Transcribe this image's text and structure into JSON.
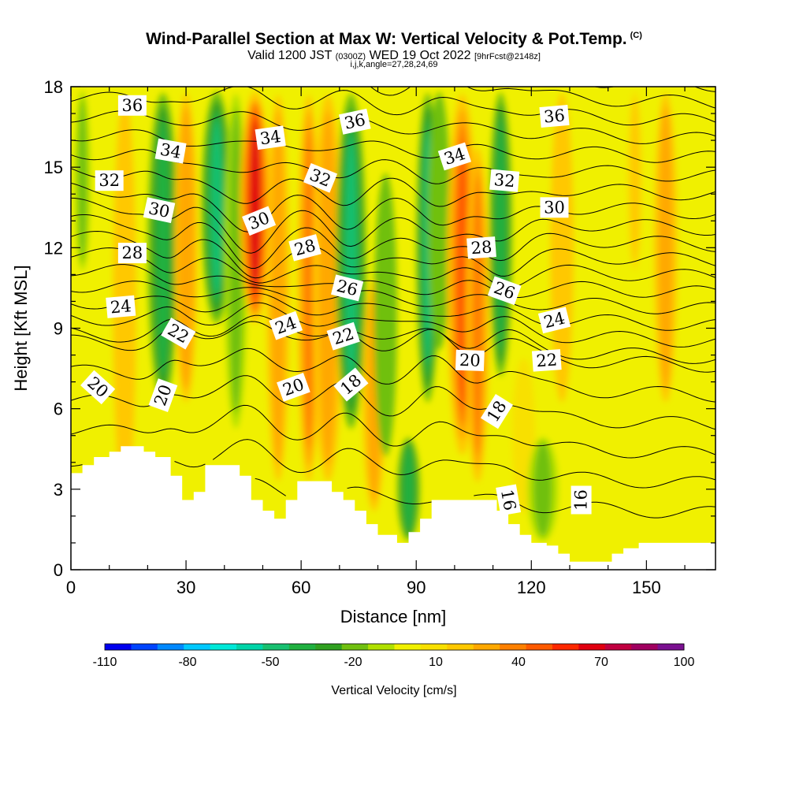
{
  "title": {
    "main": "Wind-Parallel Section at Max W: Vertical Velocity & Pot.Temp.",
    "copyright": "(C)",
    "valid_prefix": "Valid 1200 JST",
    "valid_utc": "(0300Z)",
    "valid_date": "WED 19 Oct 2022",
    "forecast": "[9hrFcst@2148z]",
    "indices": "i,j,k,angle=27,28,24,69"
  },
  "chart_data": {
    "type": "heatmap",
    "xlabel": "Distance [nm]",
    "ylabel": "Height [Kft MSL]",
    "xlim": [
      0,
      168
    ],
    "ylim": [
      0,
      18
    ],
    "x_ticks": [
      0,
      30,
      60,
      90,
      120,
      150
    ],
    "y_ticks": [
      0,
      3,
      6,
      9,
      12,
      15,
      18
    ],
    "colorbar": {
      "label": "Vertical Velocity [cm/s]",
      "tick_labels": [
        "-110",
        "-80",
        "-50",
        "-20",
        "10",
        "40",
        "70",
        "100"
      ],
      "tick_values": [
        -110,
        -80,
        -50,
        -20,
        10,
        40,
        70,
        100
      ],
      "colors": [
        "#0000ee",
        "#0044ff",
        "#0088ff",
        "#00c8ff",
        "#00e8d8",
        "#00d4a8",
        "#18c070",
        "#20b040",
        "#30a020",
        "#70c010",
        "#b0e000",
        "#f0f000",
        "#f8e000",
        "#ffc800",
        "#ffa800",
        "#ff8000",
        "#ff5a00",
        "#ff2800",
        "#e00010",
        "#c00040",
        "#a00060",
        "#7a1090"
      ]
    },
    "background_color": "#f0f000",
    "w_plumes": [
      {
        "x": 3,
        "w": 2,
        "y0": 11,
        "y1": 18,
        "v": -18
      },
      {
        "x": 14,
        "w": 3,
        "y0": 2,
        "y1": 18,
        "v": 22
      },
      {
        "x": 24,
        "w": 4,
        "y0": 6,
        "y1": 18,
        "v": -40
      },
      {
        "x": 30,
        "w": 3,
        "y0": 6,
        "y1": 18,
        "v": 32
      },
      {
        "x": 38,
        "w": 4,
        "y0": 9,
        "y1": 18,
        "v": -48
      },
      {
        "x": 43,
        "w": 3,
        "y0": 5,
        "y1": 18,
        "v": -20
      },
      {
        "x": 48,
        "w": 4,
        "y0": 9,
        "y1": 18,
        "v": 62
      },
      {
        "x": 54,
        "w": 3,
        "y0": 3,
        "y1": 18,
        "v": 25
      },
      {
        "x": 62,
        "w": 3,
        "y0": 3,
        "y1": 18,
        "v": 38
      },
      {
        "x": 67,
        "w": 4,
        "y0": 3,
        "y1": 18,
        "v": 25
      },
      {
        "x": 73,
        "w": 4,
        "y0": 5,
        "y1": 18,
        "v": -45
      },
      {
        "x": 79,
        "w": 3,
        "y0": 2,
        "y1": 11,
        "v": 28
      },
      {
        "x": 82,
        "w": 3,
        "y0": 4,
        "y1": 15,
        "v": -22
      },
      {
        "x": 88,
        "w": 3,
        "y0": 1,
        "y1": 5,
        "v": -38
      },
      {
        "x": 93,
        "w": 3,
        "y0": 6,
        "y1": 18,
        "v": -45
      },
      {
        "x": 96,
        "w": 3,
        "y0": 8,
        "y1": 18,
        "v": -22
      },
      {
        "x": 102,
        "w": 4,
        "y0": 4,
        "y1": 18,
        "v": 48
      },
      {
        "x": 106,
        "w": 3,
        "y0": 3,
        "y1": 16,
        "v": 35
      },
      {
        "x": 112,
        "w": 3,
        "y0": 7,
        "y1": 18,
        "v": -38
      },
      {
        "x": 118,
        "w": 3,
        "y0": 2,
        "y1": 8,
        "v": 10
      },
      {
        "x": 123,
        "w": 4,
        "y0": 1,
        "y1": 5,
        "v": -20
      },
      {
        "x": 128,
        "w": 3,
        "y0": 6,
        "y1": 18,
        "v": 22
      },
      {
        "x": 147,
        "w": 2,
        "y0": 11,
        "y1": 18,
        "v": 18
      },
      {
        "x": 155,
        "w": 3,
        "y0": 6,
        "y1": 18,
        "v": 24
      }
    ],
    "terrain": [
      [
        0,
        3.6
      ],
      [
        3,
        3.9
      ],
      [
        6,
        4.2
      ],
      [
        10,
        4.4
      ],
      [
        13,
        4.6
      ],
      [
        19,
        4.4
      ],
      [
        22,
        4.2
      ],
      [
        26,
        3.5
      ],
      [
        29,
        2.6
      ],
      [
        32,
        2.9
      ],
      [
        35,
        3.9
      ],
      [
        41,
        3.9
      ],
      [
        44,
        3.5
      ],
      [
        47,
        2.6
      ],
      [
        50,
        2.2
      ],
      [
        53,
        1.9
      ],
      [
        56,
        2.6
      ],
      [
        59,
        3.3
      ],
      [
        66,
        3.3
      ],
      [
        68,
        2.9
      ],
      [
        71,
        2.6
      ],
      [
        74,
        2.2
      ],
      [
        77,
        1.7
      ],
      [
        80,
        1.3
      ],
      [
        85,
        1.0
      ],
      [
        88,
        1.4
      ],
      [
        91,
        1.9
      ],
      [
        94,
        2.6
      ],
      [
        108,
        2.6
      ],
      [
        111,
        2.2
      ],
      [
        114,
        1.7
      ],
      [
        117,
        1.3
      ],
      [
        120,
        1.0
      ],
      [
        124,
        0.9
      ],
      [
        127,
        0.6
      ],
      [
        130,
        0.3
      ],
      [
        138,
        0.3
      ],
      [
        141,
        0.6
      ],
      [
        144,
        0.8
      ],
      [
        148,
        1.0
      ],
      [
        168,
        1.0
      ]
    ],
    "theta_levels": [
      15,
      16,
      17,
      18,
      19,
      20,
      21,
      22,
      23,
      24,
      25,
      26,
      27,
      28,
      29,
      30,
      31,
      32,
      33,
      34,
      35,
      36,
      37,
      38
    ],
    "theta_labels": [
      {
        "text": "36",
        "x": 16,
        "y": 17.3,
        "angle": 0
      },
      {
        "text": "34",
        "x": 26,
        "y": 15.6,
        "angle": 10
      },
      {
        "text": "34",
        "x": 52,
        "y": 16.1,
        "angle": -8
      },
      {
        "text": "36",
        "x": 74,
        "y": 16.7,
        "angle": -12
      },
      {
        "text": "34",
        "x": 100,
        "y": 15.4,
        "angle": -18
      },
      {
        "text": "36",
        "x": 126,
        "y": 16.9,
        "angle": -5
      },
      {
        "text": "32",
        "x": 10,
        "y": 14.5,
        "angle": 0
      },
      {
        "text": "32",
        "x": 65,
        "y": 14.6,
        "angle": 22
      },
      {
        "text": "32",
        "x": 113,
        "y": 14.5,
        "angle": 5
      },
      {
        "text": "30",
        "x": 23,
        "y": 13.4,
        "angle": 12
      },
      {
        "text": "30",
        "x": 49,
        "y": 13.0,
        "angle": -22
      },
      {
        "text": "30",
        "x": 126,
        "y": 13.5,
        "angle": 0
      },
      {
        "text": "28",
        "x": 16,
        "y": 11.8,
        "angle": 0
      },
      {
        "text": "28",
        "x": 61,
        "y": 12.0,
        "angle": -15
      },
      {
        "text": "28",
        "x": 107,
        "y": 12.0,
        "angle": -4
      },
      {
        "text": "26",
        "x": 72,
        "y": 10.5,
        "angle": 14
      },
      {
        "text": "26",
        "x": 113,
        "y": 10.4,
        "angle": 20
      },
      {
        "text": "24",
        "x": 13,
        "y": 9.8,
        "angle": -5
      },
      {
        "text": "24",
        "x": 56,
        "y": 9.1,
        "angle": -20
      },
      {
        "text": "24",
        "x": 126,
        "y": 9.3,
        "angle": -14
      },
      {
        "text": "22",
        "x": 28,
        "y": 8.8,
        "angle": 30
      },
      {
        "text": "22",
        "x": 71,
        "y": 8.7,
        "angle": -18
      },
      {
        "text": "22",
        "x": 124,
        "y": 7.8,
        "angle": -4
      },
      {
        "text": "20",
        "x": 7,
        "y": 6.8,
        "angle": 42
      },
      {
        "text": "20",
        "x": 24,
        "y": 6.5,
        "angle": -70
      },
      {
        "text": "20",
        "x": 58,
        "y": 6.8,
        "angle": -20
      },
      {
        "text": "20",
        "x": 104,
        "y": 7.8,
        "angle": 2
      },
      {
        "text": "18",
        "x": 73,
        "y": 6.9,
        "angle": -40
      },
      {
        "text": "18",
        "x": 111,
        "y": 5.9,
        "angle": -58
      },
      {
        "text": "16",
        "x": 114,
        "y": 2.6,
        "angle": 80
      },
      {
        "text": "16",
        "x": 133,
        "y": 2.6,
        "angle": -90
      }
    ]
  }
}
